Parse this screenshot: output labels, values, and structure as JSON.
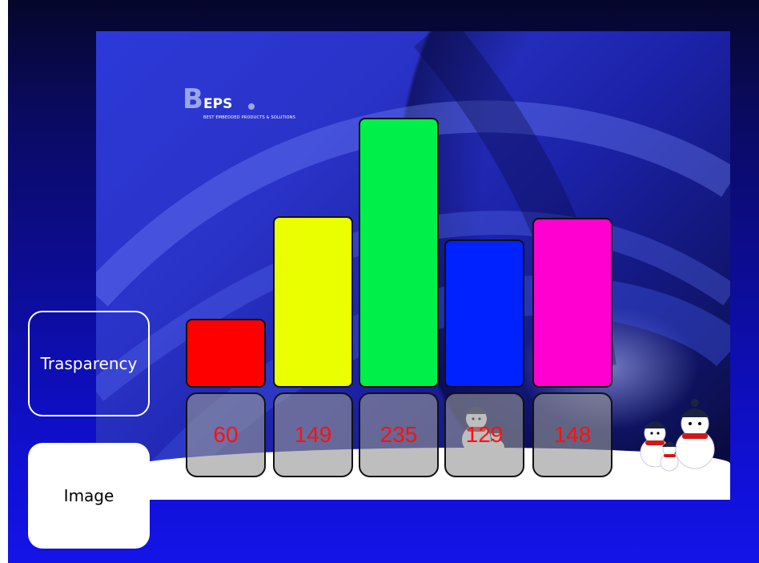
{
  "logo": {
    "mark": "B",
    "word": "EPS",
    "tagline": "BEST EMBEDDED PRODUCTS & SOLUTIONS"
  },
  "buttons": {
    "trasparency_label": "Trasparency",
    "image_label": "Image"
  },
  "chart_data": {
    "type": "bar",
    "categories": [
      "",
      "",
      "",
      "",
      ""
    ],
    "values": [
      60,
      149,
      235,
      129,
      148
    ],
    "value_labels": [
      "60",
      "149",
      "235",
      "129",
      "148"
    ],
    "colors": [
      "#ff0000",
      "#eaff00",
      "#00f04a",
      "#0022ff",
      "#ff00d0"
    ],
    "ylim": [
      0,
      255
    ],
    "title": "",
    "xlabel": "",
    "ylabel": ""
  }
}
